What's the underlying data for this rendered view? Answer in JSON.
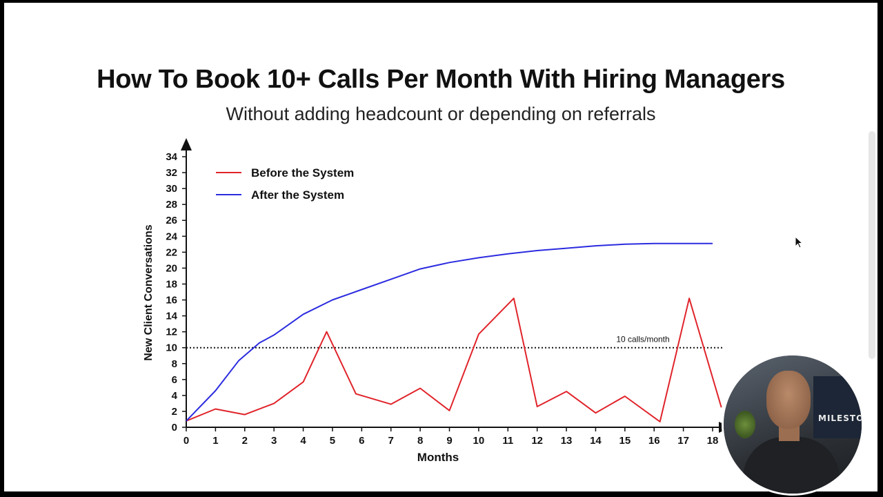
{
  "slide": {
    "title": "How To Book 10+ Calls Per Month With Hiring Managers",
    "subtitle": "Without adding headcount or depending on referrals"
  },
  "webcam": {
    "logo_text": "MILESTO"
  },
  "colors": {
    "before": "#e0232a",
    "after": "#2b2be0",
    "axis": "#111111"
  },
  "chart_data": {
    "type": "line",
    "title": "",
    "xlabel": "Months",
    "ylabel": "New Client Conversations",
    "xlim": [
      0,
      18
    ],
    "ylim": [
      0,
      34
    ],
    "x_ticks": [
      0,
      1,
      2,
      3,
      4,
      5,
      6,
      7,
      8,
      9,
      10,
      11,
      12,
      13,
      14,
      15,
      16,
      17,
      18
    ],
    "y_ticks": [
      0,
      2,
      4,
      6,
      8,
      10,
      12,
      14,
      16,
      18,
      20,
      22,
      24,
      26,
      28,
      30,
      32,
      34
    ],
    "grid": false,
    "legend": "top-left",
    "series": [
      {
        "name": "Before the System",
        "color": "#e0232a",
        "points": [
          [
            0,
            0.8
          ],
          [
            1,
            2.3
          ],
          [
            2,
            1.6
          ],
          [
            3,
            3.0
          ],
          [
            4,
            5.7
          ],
          [
            4.8,
            12.0
          ],
          [
            5.8,
            4.2
          ],
          [
            7,
            2.9
          ],
          [
            8,
            4.9
          ],
          [
            9,
            2.1
          ],
          [
            10,
            11.7
          ],
          [
            11.2,
            16.2
          ],
          [
            12,
            2.6
          ],
          [
            13,
            4.5
          ],
          [
            14,
            1.8
          ],
          [
            15,
            3.9
          ],
          [
            16.2,
            0.7
          ],
          [
            17.2,
            16.2
          ],
          [
            18.3,
            2.5
          ]
        ]
      },
      {
        "name": "After the System",
        "color": "#2b2be0",
        "points": [
          [
            0,
            0.8
          ],
          [
            1,
            4.6
          ],
          [
            1.8,
            8.4
          ],
          [
            2.5,
            10.6
          ],
          [
            3,
            11.6
          ],
          [
            4,
            14.2
          ],
          [
            5,
            16.0
          ],
          [
            6,
            17.3
          ],
          [
            7,
            18.6
          ],
          [
            8,
            19.9
          ],
          [
            9,
            20.7
          ],
          [
            10,
            21.3
          ],
          [
            11,
            21.8
          ],
          [
            12,
            22.2
          ],
          [
            13,
            22.5
          ],
          [
            14,
            22.8
          ],
          [
            15,
            23.0
          ],
          [
            16,
            23.1
          ],
          [
            17,
            23.1
          ],
          [
            18,
            23.1
          ]
        ]
      }
    ],
    "reference_line": {
      "y": 10,
      "label": "10 calls/month",
      "style": "dotted"
    }
  }
}
